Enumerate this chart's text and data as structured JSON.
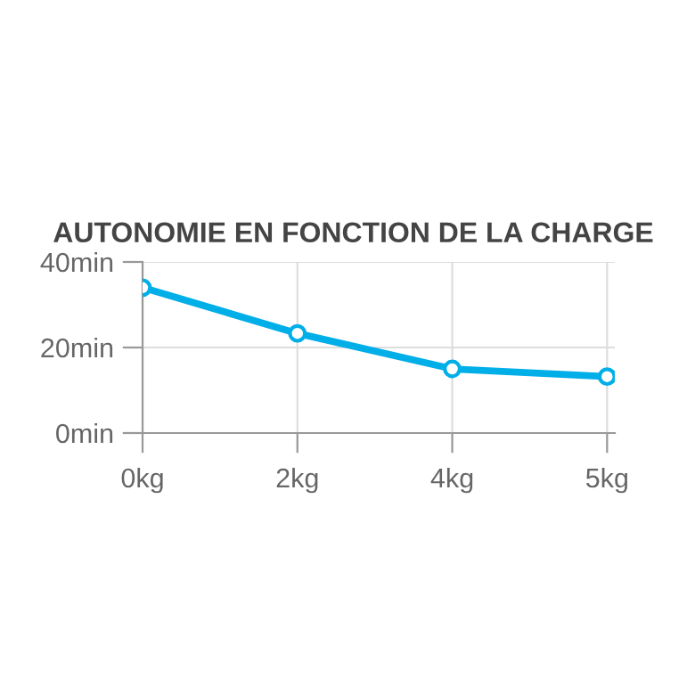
{
  "chart_data": {
    "type": "line",
    "title": "AUTONOMIE EN FONCTION DE LA CHARGE",
    "categories": [
      "0kg",
      "2kg",
      "4kg",
      "5kg"
    ],
    "series": [
      {
        "color": "#00aee8",
        "values": [
          34,
          23.3,
          15,
          13.2
        ]
      }
    ],
    "ylim": [
      0,
      40
    ],
    "yticks": [
      {
        "value": 0,
        "label": "0min"
      },
      {
        "value": 20,
        "label": "20min"
      },
      {
        "value": 40,
        "label": "40min"
      }
    ],
    "grid": true,
    "marker": "circle",
    "line_style": "solid"
  }
}
